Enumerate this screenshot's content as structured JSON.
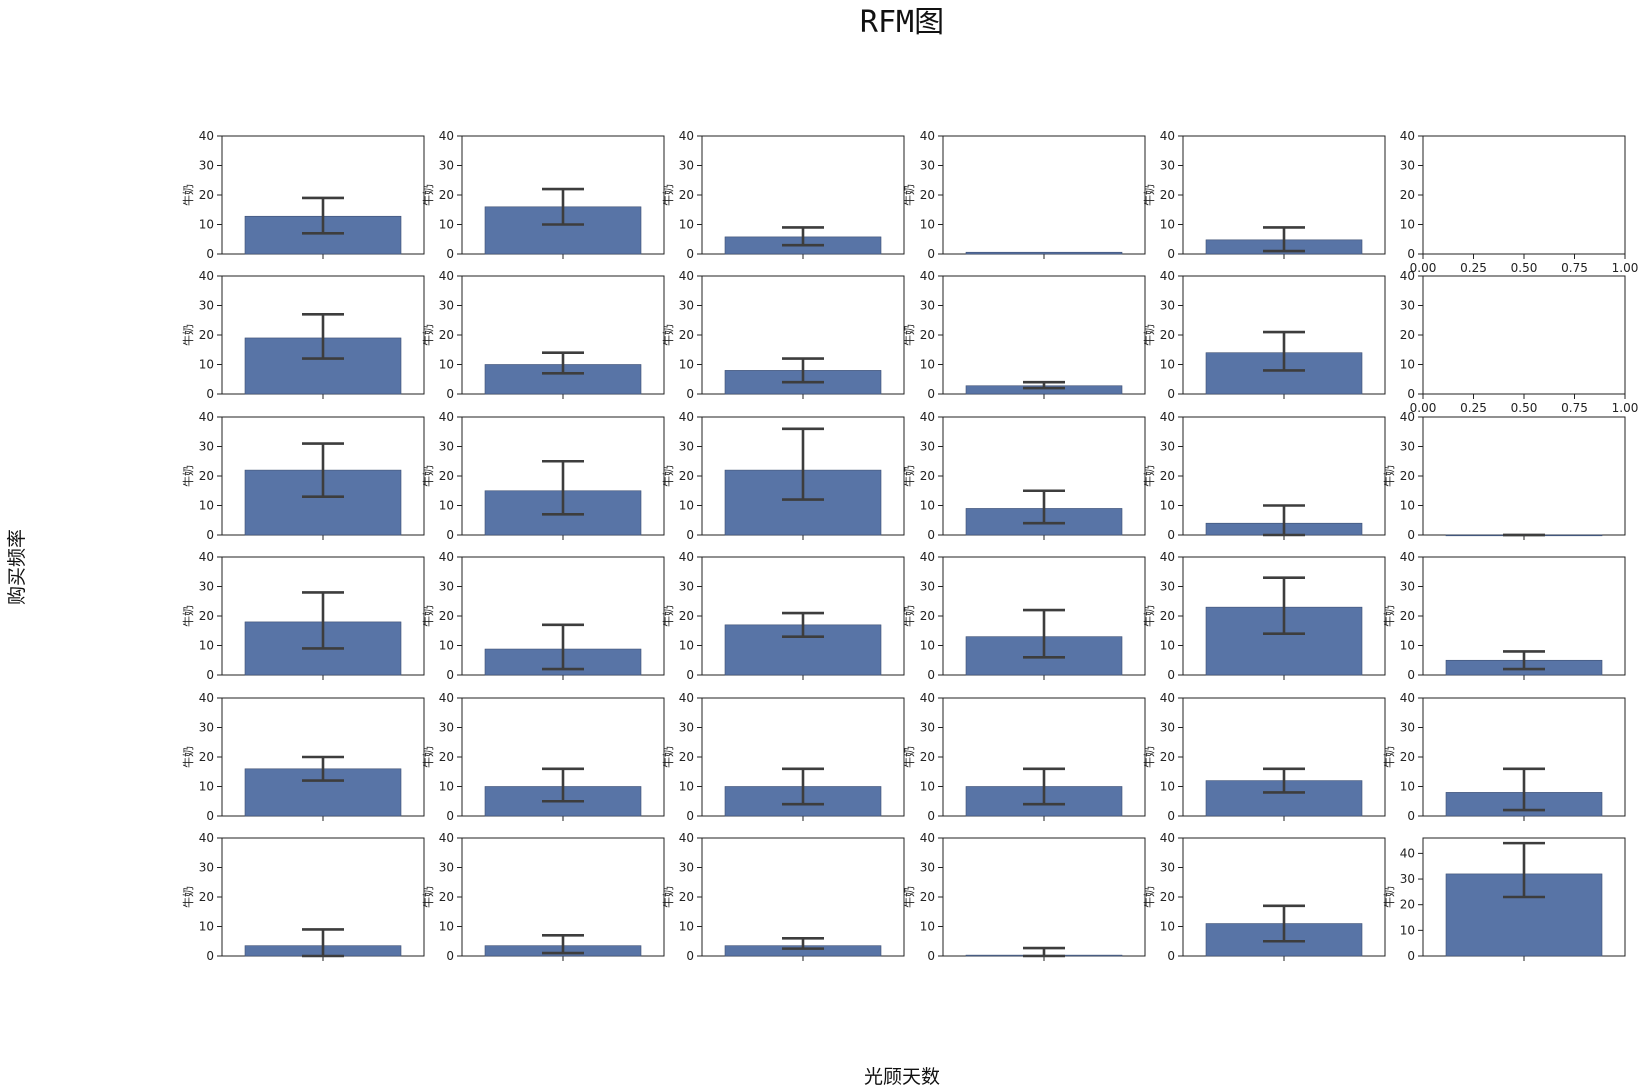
{
  "chart_data": {
    "type": "bar",
    "title": "RFM图",
    "xlabel": "光顾天数",
    "ylabel": "购买频率",
    "subplot_ylabel": "牛奶",
    "grid": false,
    "bar_color": "#5874a6",
    "errorbar_color": "#3d3d3d",
    "rows": 6,
    "cols": 6,
    "default_yticks": [
      0,
      10,
      20,
      30,
      40
    ],
    "default_ylim": [
      0,
      40
    ],
    "empty_xticks": [
      "0.00",
      "0.25",
      "0.50",
      "0.75",
      "1.00"
    ],
    "empty_ylim": [
      0,
      40
    ],
    "subplots": [
      {
        "row": 0,
        "col": 0,
        "value": 12.8,
        "err_low": 7,
        "err_high": 19,
        "ylabel": "牛奶"
      },
      {
        "row": 0,
        "col": 1,
        "value": 16,
        "err_low": 10,
        "err_high": 22,
        "ylabel": "牛奶"
      },
      {
        "row": 0,
        "col": 2,
        "value": 5.8,
        "err_low": 3,
        "err_high": 9,
        "ylabel": "牛奶"
      },
      {
        "row": 0,
        "col": 3,
        "value": 0.6,
        "ylabel": "牛奶"
      },
      {
        "row": 0,
        "col": 4,
        "value": 4.8,
        "err_low": 1,
        "err_high": 9,
        "ylabel": "牛奶"
      },
      {
        "row": 0,
        "col": 5,
        "empty": true,
        "ylabel": ""
      },
      {
        "row": 1,
        "col": 0,
        "value": 19,
        "err_low": 12,
        "err_high": 27,
        "ylabel": "牛奶"
      },
      {
        "row": 1,
        "col": 1,
        "value": 10,
        "err_low": 7,
        "err_high": 14,
        "ylabel": "牛奶"
      },
      {
        "row": 1,
        "col": 2,
        "value": 8,
        "err_low": 4,
        "err_high": 12,
        "ylabel": "牛奶"
      },
      {
        "row": 1,
        "col": 3,
        "value": 2.8,
        "err_low": 2,
        "err_high": 4,
        "ylabel": "牛奶"
      },
      {
        "row": 1,
        "col": 4,
        "value": 14,
        "err_low": 8,
        "err_high": 21,
        "ylabel": "牛奶"
      },
      {
        "row": 1,
        "col": 5,
        "empty": true,
        "ylabel": ""
      },
      {
        "row": 2,
        "col": 0,
        "value": 22,
        "err_low": 13,
        "err_high": 31,
        "ylabel": "牛奶"
      },
      {
        "row": 2,
        "col": 1,
        "value": 15,
        "err_low": 7,
        "err_high": 25,
        "ylabel": "牛奶"
      },
      {
        "row": 2,
        "col": 2,
        "value": 22,
        "err_low": 12,
        "err_high": 36,
        "ylabel": "牛奶"
      },
      {
        "row": 2,
        "col": 3,
        "value": 9,
        "err_low": 4,
        "err_high": 15,
        "ylabel": "牛奶"
      },
      {
        "row": 2,
        "col": 4,
        "value": 4,
        "err_low": 0,
        "err_high": 10,
        "ylabel": "牛奶"
      },
      {
        "row": 2,
        "col": 5,
        "value": 0,
        "err_low": 0,
        "err_high": 0,
        "ylabel": "牛奶"
      },
      {
        "row": 3,
        "col": 0,
        "value": 18,
        "err_low": 9,
        "err_high": 28,
        "ylabel": "牛奶"
      },
      {
        "row": 3,
        "col": 1,
        "value": 8.8,
        "err_low": 2,
        "err_high": 17,
        "ylabel": "牛奶"
      },
      {
        "row": 3,
        "col": 2,
        "value": 17,
        "err_low": 13,
        "err_high": 21,
        "ylabel": "牛奶"
      },
      {
        "row": 3,
        "col": 3,
        "value": 13,
        "err_low": 6,
        "err_high": 22,
        "ylabel": "牛奶"
      },
      {
        "row": 3,
        "col": 4,
        "value": 23,
        "err_low": 14,
        "err_high": 33,
        "ylabel": "牛奶"
      },
      {
        "row": 3,
        "col": 5,
        "value": 5,
        "err_low": 2,
        "err_high": 8,
        "ylabel": "牛奶"
      },
      {
        "row": 4,
        "col": 0,
        "value": 16,
        "err_low": 12,
        "err_high": 20,
        "ylabel": "牛奶"
      },
      {
        "row": 4,
        "col": 1,
        "value": 10,
        "err_low": 5,
        "err_high": 16,
        "ylabel": "牛奶"
      },
      {
        "row": 4,
        "col": 2,
        "value": 10,
        "err_low": 4,
        "err_high": 16,
        "ylabel": "牛奶"
      },
      {
        "row": 4,
        "col": 3,
        "value": 10,
        "err_low": 4,
        "err_high": 16,
        "ylabel": "牛奶"
      },
      {
        "row": 4,
        "col": 4,
        "value": 12,
        "err_low": 8,
        "err_high": 16,
        "ylabel": "牛奶"
      },
      {
        "row": 4,
        "col": 5,
        "value": 8,
        "err_low": 2,
        "err_high": 16,
        "ylabel": "牛奶"
      },
      {
        "row": 5,
        "col": 0,
        "value": 3.5,
        "err_low": 0,
        "err_high": 9,
        "ylabel": "牛奶"
      },
      {
        "row": 5,
        "col": 1,
        "value": 3.5,
        "err_low": 1,
        "err_high": 7,
        "ylabel": "牛奶"
      },
      {
        "row": 5,
        "col": 2,
        "value": 3.5,
        "err_low": 2.5,
        "err_high": 6,
        "ylabel": "牛奶"
      },
      {
        "row": 5,
        "col": 3,
        "value": 0.3,
        "err_low": 0,
        "err_high": 2.7,
        "ylabel": "牛奶"
      },
      {
        "row": 5,
        "col": 4,
        "value": 11,
        "err_low": 5,
        "err_high": 17,
        "ylabel": "牛奶"
      },
      {
        "row": 5,
        "col": 5,
        "value": 32,
        "err_low": 23,
        "err_high": 44,
        "ylim": [
          0,
          46
        ],
        "yticks": [
          0,
          10,
          20,
          30,
          40
        ],
        "ylabel": "牛奶"
      }
    ]
  }
}
